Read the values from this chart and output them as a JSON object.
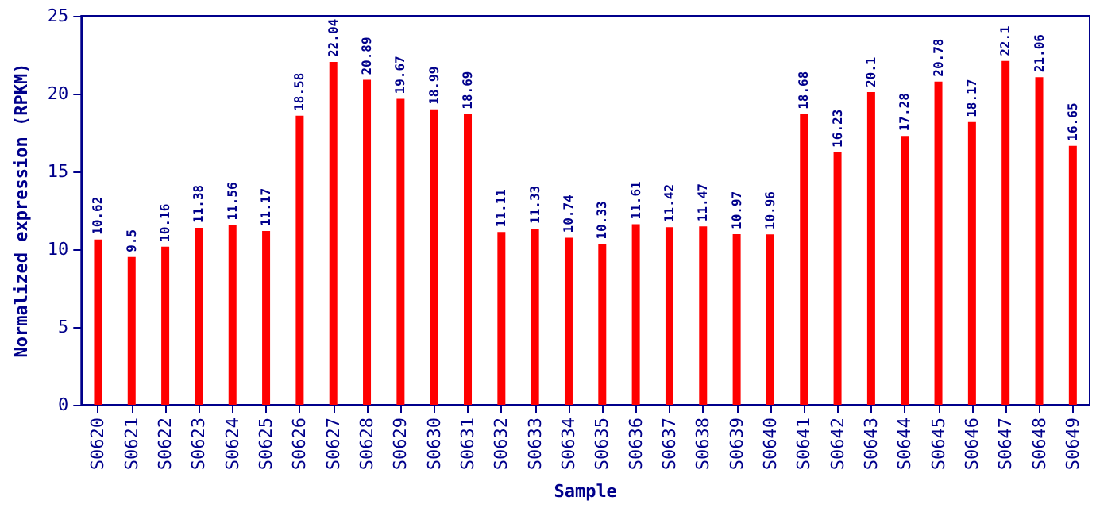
{
  "chart_data": {
    "type": "bar",
    "xlabel": "Sample",
    "ylabel": "Normalized expression (RPKM)",
    "categories": [
      "S0620",
      "S0621",
      "S0622",
      "S0623",
      "S0624",
      "S0625",
      "S0626",
      "S0627",
      "S0628",
      "S0629",
      "S0630",
      "S0631",
      "S0632",
      "S0633",
      "S0634",
      "S0635",
      "S0636",
      "S0637",
      "S0638",
      "S0639",
      "S0640",
      "S0641",
      "S0642",
      "S0643",
      "S0644",
      "S0645",
      "S0646",
      "S0647",
      "S0648",
      "S0649"
    ],
    "values": [
      10.62,
      9.5,
      10.16,
      11.38,
      11.56,
      11.17,
      18.58,
      22.04,
      20.89,
      19.67,
      18.99,
      18.69,
      11.11,
      11.33,
      10.74,
      10.33,
      11.61,
      11.42,
      11.47,
      10.97,
      10.96,
      18.68,
      16.23,
      20.1,
      17.28,
      20.78,
      18.17,
      22.1,
      21.06,
      16.65
    ],
    "color": "#ff0000",
    "ylim": [
      0,
      25
    ],
    "yticks": [
      0,
      5,
      10,
      15,
      20,
      25
    ],
    "data_labels": true
  }
}
